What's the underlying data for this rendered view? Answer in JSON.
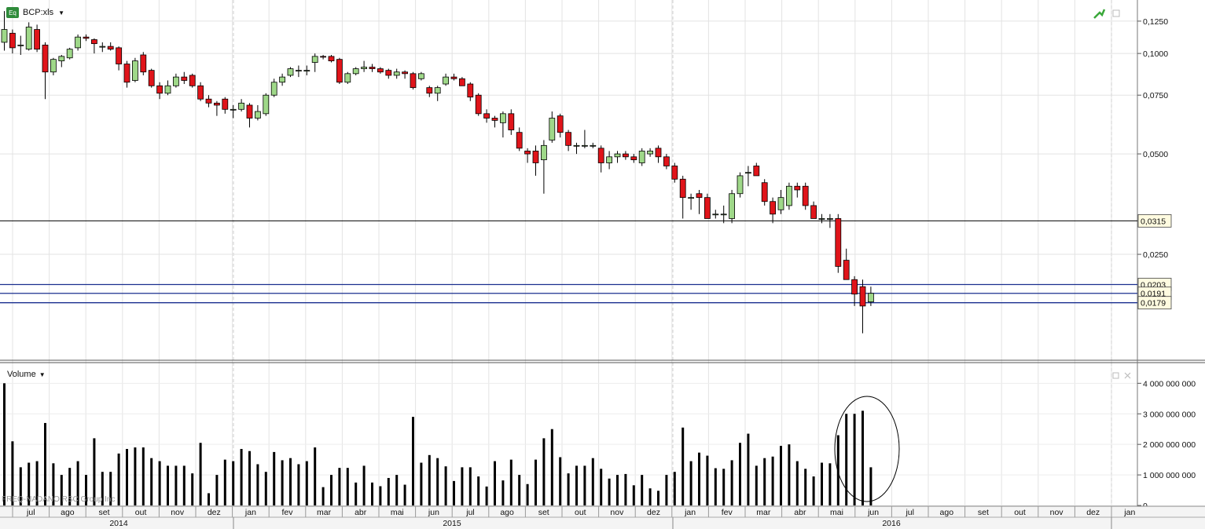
{
  "header": {
    "badge": "Eq",
    "title": "BCP:xls"
  },
  "volume_panel": {
    "title": "Volume"
  },
  "watermark": "FREQ-NADANO   RSC Group Inc",
  "price_axis_ticks": [
    "0,1250",
    "0,1000",
    "0,0750",
    "0,0500",
    "0,0250"
  ],
  "volume_axis_ticks": [
    "4 000 000 000",
    "3 000 000 000",
    "2 000 000 000",
    "1 000 000 000",
    "0"
  ],
  "price_lines": [
    {
      "label": "0,0315",
      "color": "#000000"
    },
    {
      "label": "0,0203",
      "color": "#1a2f8f"
    },
    {
      "label": "0,0191",
      "color": "#1a2f8f"
    },
    {
      "label": "0,0179",
      "color": "#1a2f8f"
    }
  ],
  "month_labels": [
    "jul",
    "ago",
    "set",
    "out",
    "nov",
    "dez",
    "jan",
    "fev",
    "mar",
    "abr",
    "mai",
    "jun",
    "jul",
    "ago",
    "set",
    "out",
    "nov",
    "dez",
    "jan",
    "fev",
    "mar",
    "abr",
    "mai",
    "jun",
    "jul",
    "ago",
    "set",
    "out",
    "nov",
    "dez",
    "jan"
  ],
  "year_labels": [
    "2014",
    "2015",
    "2016"
  ],
  "colors": {
    "up": "#9fd889",
    "down": "#e0141a",
    "line": "#1a2f8f",
    "volume": "#000000"
  },
  "chart_data": {
    "type": "candlestick",
    "title": "BCP:xls",
    "interval": "weekly",
    "x_range": [
      "2014-06",
      "2017-01"
    ],
    "y_scale": "log",
    "ylim": [
      0.0125,
      0.137
    ],
    "volume_ylim": [
      0,
      4600000000
    ],
    "candles": [
      {
        "o": 0.108,
        "h": 0.134,
        "l": 0.102,
        "c": 0.118,
        "v": 4000000000
      },
      {
        "o": 0.115,
        "h": 0.118,
        "l": 0.1,
        "c": 0.104,
        "v": 2100000000
      },
      {
        "o": 0.106,
        "h": 0.113,
        "l": 0.099,
        "c": 0.106,
        "v": 1250000000
      },
      {
        "o": 0.103,
        "h": 0.124,
        "l": 0.102,
        "c": 0.12,
        "v": 1400000000
      },
      {
        "o": 0.118,
        "h": 0.122,
        "l": 0.101,
        "c": 0.103,
        "v": 1450000000
      },
      {
        "o": 0.106,
        "h": 0.108,
        "l": 0.073,
        "c": 0.088,
        "v": 2700000000
      },
      {
        "o": 0.088,
        "h": 0.097,
        "l": 0.086,
        "c": 0.096,
        "v": 1380000000
      },
      {
        "o": 0.095,
        "h": 0.099,
        "l": 0.091,
        "c": 0.098,
        "v": 1000000000
      },
      {
        "o": 0.097,
        "h": 0.104,
        "l": 0.096,
        "c": 0.103,
        "v": 1230000000
      },
      {
        "o": 0.104,
        "h": 0.114,
        "l": 0.102,
        "c": 0.112,
        "v": 1450000000
      },
      {
        "o": 0.112,
        "h": 0.114,
        "l": 0.109,
        "c": 0.111,
        "v": 1000000000
      },
      {
        "o": 0.11,
        "h": 0.111,
        "l": 0.1,
        "c": 0.107,
        "v": 2200000000
      },
      {
        "o": 0.105,
        "h": 0.108,
        "l": 0.101,
        "c": 0.105,
        "v": 1100000000
      },
      {
        "o": 0.105,
        "h": 0.108,
        "l": 0.102,
        "c": 0.103,
        "v": 1100000000
      },
      {
        "o": 0.104,
        "h": 0.105,
        "l": 0.089,
        "c": 0.093,
        "v": 1700000000
      },
      {
        "o": 0.093,
        "h": 0.095,
        "l": 0.079,
        "c": 0.082,
        "v": 1850000000
      },
      {
        "o": 0.083,
        "h": 0.097,
        "l": 0.082,
        "c": 0.095,
        "v": 1900000000
      },
      {
        "o": 0.099,
        "h": 0.101,
        "l": 0.086,
        "c": 0.088,
        "v": 1900000000
      },
      {
        "o": 0.089,
        "h": 0.09,
        "l": 0.079,
        "c": 0.08,
        "v": 1550000000
      },
      {
        "o": 0.08,
        "h": 0.082,
        "l": 0.073,
        "c": 0.076,
        "v": 1450000000
      },
      {
        "o": 0.076,
        "h": 0.083,
        "l": 0.075,
        "c": 0.08,
        "v": 1300000000
      },
      {
        "o": 0.08,
        "h": 0.087,
        "l": 0.079,
        "c": 0.085,
        "v": 1300000000
      },
      {
        "o": 0.085,
        "h": 0.088,
        "l": 0.081,
        "c": 0.083,
        "v": 1300000000
      },
      {
        "o": 0.086,
        "h": 0.087,
        "l": 0.079,
        "c": 0.08,
        "v": 1050000000
      },
      {
        "o": 0.08,
        "h": 0.082,
        "l": 0.072,
        "c": 0.073,
        "v": 2050000000
      },
      {
        "o": 0.073,
        "h": 0.075,
        "l": 0.069,
        "c": 0.071,
        "v": 400000000
      },
      {
        "o": 0.071,
        "h": 0.072,
        "l": 0.065,
        "c": 0.07,
        "v": 1000000000
      },
      {
        "o": 0.073,
        "h": 0.074,
        "l": 0.066,
        "c": 0.068,
        "v": 1500000000
      },
      {
        "o": 0.068,
        "h": 0.07,
        "l": 0.064,
        "c": 0.068,
        "v": 1450000000
      },
      {
        "o": 0.068,
        "h": 0.073,
        "l": 0.067,
        "c": 0.071,
        "v": 1850000000
      },
      {
        "o": 0.07,
        "h": 0.071,
        "l": 0.06,
        "c": 0.064,
        "v": 1780000000
      },
      {
        "o": 0.064,
        "h": 0.07,
        "l": 0.063,
        "c": 0.067,
        "v": 1350000000
      },
      {
        "o": 0.066,
        "h": 0.076,
        "l": 0.065,
        "c": 0.075,
        "v": 1100000000
      },
      {
        "o": 0.075,
        "h": 0.084,
        "l": 0.074,
        "c": 0.082,
        "v": 1750000000
      },
      {
        "o": 0.082,
        "h": 0.087,
        "l": 0.08,
        "c": 0.085,
        "v": 1480000000
      },
      {
        "o": 0.086,
        "h": 0.091,
        "l": 0.085,
        "c": 0.09,
        "v": 1550000000
      },
      {
        "o": 0.089,
        "h": 0.092,
        "l": 0.085,
        "c": 0.089,
        "v": 1350000000
      },
      {
        "o": 0.089,
        "h": 0.092,
        "l": 0.086,
        "c": 0.089,
        "v": 1450000000
      },
      {
        "o": 0.094,
        "h": 0.1,
        "l": 0.088,
        "c": 0.098,
        "v": 1900000000
      },
      {
        "o": 0.098,
        "h": 0.099,
        "l": 0.096,
        "c": 0.0975,
        "v": 600000000
      },
      {
        "o": 0.098,
        "h": 0.099,
        "l": 0.094,
        "c": 0.095,
        "v": 1000000000
      },
      {
        "o": 0.096,
        "h": 0.097,
        "l": 0.081,
        "c": 0.082,
        "v": 1230000000
      },
      {
        "o": 0.082,
        "h": 0.088,
        "l": 0.081,
        "c": 0.087,
        "v": 1230000000
      },
      {
        "o": 0.087,
        "h": 0.091,
        "l": 0.086,
        "c": 0.09,
        "v": 750000000
      },
      {
        "o": 0.09,
        "h": 0.095,
        "l": 0.088,
        "c": 0.091,
        "v": 1300000000
      },
      {
        "o": 0.091,
        "h": 0.093,
        "l": 0.088,
        "c": 0.09,
        "v": 750000000
      },
      {
        "o": 0.09,
        "h": 0.091,
        "l": 0.087,
        "c": 0.088,
        "v": 630000000
      },
      {
        "o": 0.089,
        "h": 0.09,
        "l": 0.084,
        "c": 0.086,
        "v": 900000000
      },
      {
        "o": 0.086,
        "h": 0.09,
        "l": 0.084,
        "c": 0.088,
        "v": 1000000000
      },
      {
        "o": 0.088,
        "h": 0.089,
        "l": 0.084,
        "c": 0.087,
        "v": 680000000
      },
      {
        "o": 0.087,
        "h": 0.088,
        "l": 0.078,
        "c": 0.079,
        "v": 2900000000
      },
      {
        "o": 0.084,
        "h": 0.088,
        "l": 0.083,
        "c": 0.087,
        "v": 1400000000
      },
      {
        "o": 0.079,
        "h": 0.08,
        "l": 0.074,
        "c": 0.076,
        "v": 1650000000
      },
      {
        "o": 0.076,
        "h": 0.08,
        "l": 0.072,
        "c": 0.079,
        "v": 1550000000
      },
      {
        "o": 0.081,
        "h": 0.087,
        "l": 0.08,
        "c": 0.085,
        "v": 1280000000
      },
      {
        "o": 0.085,
        "h": 0.087,
        "l": 0.083,
        "c": 0.084,
        "v": 800000000
      },
      {
        "o": 0.084,
        "h": 0.085,
        "l": 0.08,
        "c": 0.08,
        "v": 1250000000
      },
      {
        "o": 0.081,
        "h": 0.082,
        "l": 0.072,
        "c": 0.074,
        "v": 1250000000
      },
      {
        "o": 0.075,
        "h": 0.076,
        "l": 0.065,
        "c": 0.066,
        "v": 950000000
      },
      {
        "o": 0.066,
        "h": 0.068,
        "l": 0.062,
        "c": 0.064,
        "v": 620000000
      },
      {
        "o": 0.064,
        "h": 0.065,
        "l": 0.06,
        "c": 0.063,
        "v": 1450000000
      },
      {
        "o": 0.062,
        "h": 0.067,
        "l": 0.056,
        "c": 0.066,
        "v": 820000000
      },
      {
        "o": 0.066,
        "h": 0.068,
        "l": 0.057,
        "c": 0.059,
        "v": 1500000000
      },
      {
        "o": 0.058,
        "h": 0.06,
        "l": 0.051,
        "c": 0.052,
        "v": 1000000000
      },
      {
        "o": 0.051,
        "h": 0.052,
        "l": 0.047,
        "c": 0.05,
        "v": 700000000
      },
      {
        "o": 0.051,
        "h": 0.053,
        "l": 0.043,
        "c": 0.047,
        "v": 1500000000
      },
      {
        "o": 0.048,
        "h": 0.055,
        "l": 0.038,
        "c": 0.053,
        "v": 2200000000
      },
      {
        "o": 0.055,
        "h": 0.067,
        "l": 0.054,
        "c": 0.064,
        "v": 2500000000
      },
      {
        "o": 0.065,
        "h": 0.066,
        "l": 0.056,
        "c": 0.058,
        "v": 1580000000
      },
      {
        "o": 0.058,
        "h": 0.059,
        "l": 0.051,
        "c": 0.053,
        "v": 1050000000
      },
      {
        "o": 0.053,
        "h": 0.054,
        "l": 0.05,
        "c": 0.053,
        "v": 1300000000
      },
      {
        "o": 0.053,
        "h": 0.059,
        "l": 0.052,
        "c": 0.053,
        "v": 1300000000
      },
      {
        "o": 0.053,
        "h": 0.054,
        "l": 0.052,
        "c": 0.053,
        "v": 1550000000
      },
      {
        "o": 0.052,
        "h": 0.053,
        "l": 0.044,
        "c": 0.047,
        "v": 1200000000
      },
      {
        "o": 0.047,
        "h": 0.051,
        "l": 0.045,
        "c": 0.049,
        "v": 880000000
      },
      {
        "o": 0.049,
        "h": 0.051,
        "l": 0.047,
        "c": 0.05,
        "v": 1000000000
      },
      {
        "o": 0.05,
        "h": 0.051,
        "l": 0.048,
        "c": 0.049,
        "v": 1030000000
      },
      {
        "o": 0.049,
        "h": 0.05,
        "l": 0.047,
        "c": 0.048,
        "v": 660000000
      },
      {
        "o": 0.047,
        "h": 0.052,
        "l": 0.046,
        "c": 0.051,
        "v": 1000000000
      },
      {
        "o": 0.05,
        "h": 0.052,
        "l": 0.049,
        "c": 0.051,
        "v": 560000000
      },
      {
        "o": 0.052,
        "h": 0.053,
        "l": 0.047,
        "c": 0.049,
        "v": 480000000
      },
      {
        "o": 0.049,
        "h": 0.05,
        "l": 0.045,
        "c": 0.046,
        "v": 1000000000
      },
      {
        "o": 0.046,
        "h": 0.047,
        "l": 0.041,
        "c": 0.042,
        "v": 1100000000
      },
      {
        "o": 0.042,
        "h": 0.043,
        "l": 0.032,
        "c": 0.037,
        "v": 2550000000
      },
      {
        "o": 0.037,
        "h": 0.038,
        "l": 0.034,
        "c": 0.037,
        "v": 1450000000
      },
      {
        "o": 0.038,
        "h": 0.039,
        "l": 0.033,
        "c": 0.037,
        "v": 1730000000
      },
      {
        "o": 0.037,
        "h": 0.038,
        "l": 0.032,
        "c": 0.032,
        "v": 1630000000
      },
      {
        "o": 0.033,
        "h": 0.034,
        "l": 0.032,
        "c": 0.033,
        "v": 1220000000
      },
      {
        "o": 0.033,
        "h": 0.035,
        "l": 0.031,
        "c": 0.033,
        "v": 1200000000
      },
      {
        "o": 0.032,
        "h": 0.039,
        "l": 0.031,
        "c": 0.038,
        "v": 1480000000
      },
      {
        "o": 0.038,
        "h": 0.044,
        "l": 0.037,
        "c": 0.043,
        "v": 2050000000
      },
      {
        "o": 0.044,
        "h": 0.046,
        "l": 0.04,
        "c": 0.044,
        "v": 2350000000
      },
      {
        "o": 0.046,
        "h": 0.047,
        "l": 0.043,
        "c": 0.043,
        "v": 1300000000
      },
      {
        "o": 0.041,
        "h": 0.042,
        "l": 0.035,
        "c": 0.036,
        "v": 1550000000
      },
      {
        "o": 0.036,
        "h": 0.037,
        "l": 0.031,
        "c": 0.033,
        "v": 1600000000
      },
      {
        "o": 0.034,
        "h": 0.039,
        "l": 0.033,
        "c": 0.037,
        "v": 1950000000
      },
      {
        "o": 0.035,
        "h": 0.041,
        "l": 0.034,
        "c": 0.04,
        "v": 2000000000
      },
      {
        "o": 0.04,
        "h": 0.041,
        "l": 0.037,
        "c": 0.039,
        "v": 1450000000
      },
      {
        "o": 0.04,
        "h": 0.041,
        "l": 0.034,
        "c": 0.035,
        "v": 1200000000
      },
      {
        "o": 0.035,
        "h": 0.036,
        "l": 0.032,
        "c": 0.032,
        "v": 950000000
      },
      {
        "o": 0.032,
        "h": 0.033,
        "l": 0.031,
        "c": 0.032,
        "v": 1400000000
      },
      {
        "o": 0.032,
        "h": 0.033,
        "l": 0.03,
        "c": 0.032,
        "v": 1380000000
      },
      {
        "o": 0.032,
        "h": 0.033,
        "l": 0.022,
        "c": 0.023,
        "v": 2300000000
      },
      {
        "o": 0.024,
        "h": 0.026,
        "l": 0.021,
        "c": 0.021,
        "v": 3000000000
      },
      {
        "o": 0.021,
        "h": 0.0215,
        "l": 0.0175,
        "c": 0.019,
        "v": 3000000000
      },
      {
        "o": 0.02,
        "h": 0.021,
        "l": 0.0145,
        "c": 0.0175,
        "v": 3100000000
      },
      {
        "o": 0.018,
        "h": 0.02,
        "l": 0.0175,
        "c": 0.0191,
        "v": 1250000000
      }
    ],
    "horizontal_lines": [
      0.0315,
      0.0203,
      0.0191,
      0.0179
    ],
    "volume_ticks": [
      0,
      1000000000,
      2000000000,
      3000000000,
      4000000000
    ],
    "price_ticks": [
      0.025,
      0.05,
      0.075,
      0.1,
      0.125
    ],
    "highlight": "ellipse around last weeks of volume (jun 2016)"
  }
}
